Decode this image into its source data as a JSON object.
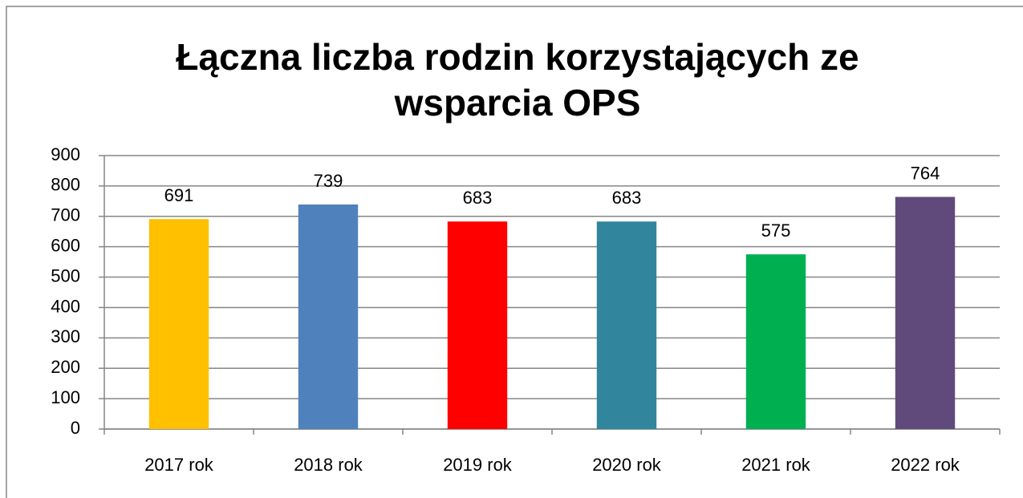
{
  "chart_data": {
    "type": "bar",
    "title": [
      "Łączna liczba rodzin korzystających ze",
      "wsparcia OPS"
    ],
    "categories": [
      "2017 rok",
      "2018 rok",
      "2019 rok",
      "2020 rok",
      "2021 rok",
      "2022 rok"
    ],
    "values": [
      691,
      739,
      683,
      683,
      575,
      764
    ],
    "colors": [
      "#FFC000",
      "#4F81BD",
      "#FF0000",
      "#31859C",
      "#00B050",
      "#604A7B"
    ],
    "ylim": [
      0,
      900
    ],
    "yticks": [
      0,
      100,
      200,
      300,
      400,
      500,
      600,
      700,
      800,
      900
    ],
    "grid": true
  }
}
